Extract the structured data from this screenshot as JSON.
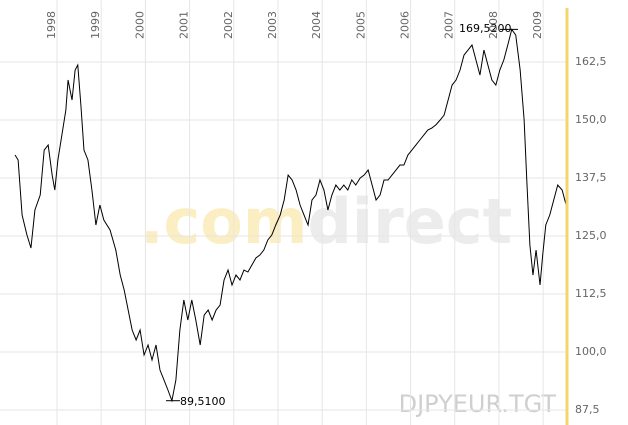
{
  "chart_data": {
    "type": "line",
    "symbol": "DJPYEUR.TGT",
    "watermark": [
      ".com",
      "direct"
    ],
    "annotations": [
      {
        "text": "169,5200"
      },
      {
        "text": "89,5100"
      }
    ],
    "xlim": [
      1996.71,
      2009.54
    ],
    "xticks": [
      1998,
      1999,
      2000,
      2001,
      2002,
      2003,
      2004,
      2005,
      2006,
      2007,
      2008,
      2009
    ],
    "ylim": [
      85,
      175
    ],
    "yticks": [
      {
        "value": 87.5,
        "label": "87,5"
      },
      {
        "value": 100,
        "label": "100,0"
      },
      {
        "value": 112.5,
        "label": "112,5"
      },
      {
        "value": 125,
        "label": "125,0"
      },
      {
        "value": 137.5,
        "label": "137,5"
      },
      {
        "value": 150,
        "label": "150,0"
      },
      {
        "value": 162.5,
        "label": "162,5"
      }
    ],
    "grid": true,
    "axis_color": "#f5d56b",
    "color": "#000000",
    "x": [
      1997.05,
      1997.12,
      1997.21,
      1997.32,
      1997.41,
      1997.5,
      1997.62,
      1997.71,
      1997.8,
      1997.89,
      1997.95,
      1998.02,
      1998.11,
      1998.2,
      1998.25,
      1998.34,
      1998.41,
      1998.47,
      1998.54,
      1998.61,
      1998.7,
      1998.79,
      1998.88,
      1998.97,
      1999.06,
      1999.2,
      1999.33,
      1999.43,
      1999.52,
      1999.61,
      1999.7,
      1999.79,
      1999.88,
      1999.97,
      2000.06,
      2000.15,
      2000.24,
      2000.33,
      2000.42,
      2000.51,
      2000.6,
      2000.69,
      2000.78,
      2000.87,
      2000.96,
      2001.05,
      2001.14,
      2001.24,
      2001.33,
      2001.42,
      2001.51,
      2001.6,
      2001.69,
      2001.78,
      2001.87,
      2001.96,
      2002.05,
      2002.14,
      2002.23,
      2002.32,
      2002.41,
      2002.5,
      2002.59,
      2002.68,
      2002.77,
      2002.86,
      2002.95,
      2003.05,
      2003.14,
      2003.23,
      2003.32,
      2003.41,
      2003.5,
      2003.59,
      2003.68,
      2003.77,
      2003.86,
      2003.95,
      2004.04,
      2004.13,
      2004.22,
      2004.31,
      2004.4,
      2004.49,
      2004.58,
      2004.67,
      2004.76,
      2004.86,
      2004.95,
      2005.04,
      2005.13,
      2005.22,
      2005.31,
      2005.4,
      2005.49,
      2005.58,
      2005.67,
      2005.76,
      2005.85,
      2005.94,
      2006.03,
      2006.12,
      2006.21,
      2006.3,
      2006.39,
      2006.48,
      2006.57,
      2006.67,
      2006.76,
      2006.85,
      2006.94,
      2007.03,
      2007.12,
      2007.21,
      2007.3,
      2007.39,
      2007.48,
      2007.57,
      2007.66,
      2007.75,
      2007.84,
      2007.93,
      2008.02,
      2008.11,
      2008.2,
      2008.29,
      2008.38,
      2008.48,
      2008.57,
      2008.63,
      2008.7,
      2008.77,
      2008.84,
      2008.93,
      2008.99,
      2009.06,
      2009.15,
      2009.24,
      2009.33,
      2009.43,
      2009.52
    ],
    "values": [
      142.45,
      141.38,
      129.52,
      125.21,
      122.41,
      130.6,
      133.83,
      143.53,
      144.61,
      138.14,
      134.91,
      141.38,
      146.76,
      152.15,
      158.62,
      154.31,
      160.77,
      161.85,
      153.23,
      143.53,
      141.38,
      134.91,
      127.37,
      131.68,
      128.45,
      126.29,
      121.98,
      116.59,
      113.36,
      109.05,
      104.74,
      102.59,
      104.74,
      99.35,
      101.51,
      98.28,
      101.51,
      96.12,
      93.97,
      91.81,
      89.51,
      93.97,
      104.74,
      111.21,
      106.9,
      111.21,
      106.9,
      101.51,
      107.97,
      109.05,
      106.9,
      109.05,
      110.13,
      115.52,
      117.67,
      114.44,
      116.59,
      115.52,
      117.67,
      117.24,
      118.75,
      120.26,
      120.9,
      121.98,
      124.14,
      125.21,
      127.37,
      129.52,
      132.76,
      138.14,
      137.07,
      134.91,
      131.68,
      129.52,
      127.37,
      132.76,
      133.83,
      137.07,
      134.91,
      130.6,
      133.83,
      135.99,
      134.91,
      135.99,
      134.91,
      137.07,
      135.99,
      137.5,
      138.14,
      139.22,
      135.99,
      132.76,
      133.83,
      137.07,
      137.07,
      138.14,
      139.22,
      140.3,
      140.3,
      142.45,
      143.53,
      144.61,
      145.69,
      146.76,
      147.84,
      148.27,
      148.92,
      150,
      151.07,
      154.31,
      157.54,
      158.62,
      160.77,
      164,
      165.08,
      166.16,
      162.93,
      159.69,
      165.08,
      161.85,
      158.62,
      157.54,
      160.77,
      162.93,
      166.16,
      169.52,
      168.31,
      160.77,
      150,
      137.07,
      123.06,
      116.59,
      121.98,
      114.44,
      120.9,
      127.37,
      129.52,
      132.76,
      135.99,
      134.91,
      131.68
    ]
  }
}
